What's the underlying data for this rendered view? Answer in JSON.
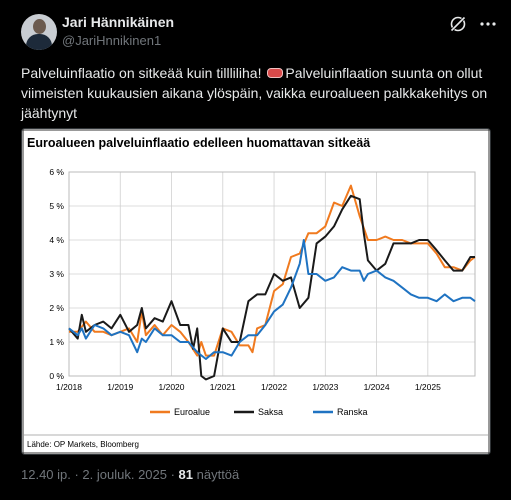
{
  "user": {
    "name": "Jari Hännikäinen",
    "handle": "@JariHnnikinen1"
  },
  "icons": {
    "grok": "grok-icon",
    "more": "more-icon"
  },
  "tweet": {
    "part1": "Palveluinflaatio on sitkeää kuin tillliliha! ",
    "part2": "Palveluinflaation suunta on ollut viimeisten kuukausien aikana ylöspäin, vaikka euroalueen palkkakehitys on jäähtynyt"
  },
  "meta": {
    "time": "12.40 ip. · 2. jouluk. 2025 · ",
    "views": "81",
    "views_label": " näyttöä"
  },
  "chart_data": {
    "type": "line",
    "title": "Euroalueen palveluinflaatio edelleen huomattavan sitkeää",
    "source": "Lähde: OP Markets, Bloomberg",
    "ylim": [
      0,
      6
    ],
    "y_ticks": [
      "0 %",
      "1 %",
      "2 %",
      "3 %",
      "4 %",
      "5 %",
      "6 %"
    ],
    "x_range": [
      2018.0,
      2025.92
    ],
    "x_ticks": [
      "1/2018",
      "1/2019",
      "1/2020",
      "1/2021",
      "1/2022",
      "1/2023",
      "1/2024",
      "1/2025"
    ],
    "grid": true,
    "legend": "bottom",
    "series": [
      {
        "name": "Euroalue",
        "color": "#f07a1f",
        "points": [
          [
            2018.0,
            1.3
          ],
          [
            2018.17,
            1.3
          ],
          [
            2018.33,
            1.6
          ],
          [
            2018.5,
            1.3
          ],
          [
            2018.67,
            1.3
          ],
          [
            2018.83,
            1.2
          ],
          [
            2019.0,
            1.3
          ],
          [
            2019.17,
            1.4
          ],
          [
            2019.33,
            1.0
          ],
          [
            2019.42,
            1.9
          ],
          [
            2019.5,
            1.2
          ],
          [
            2019.67,
            1.5
          ],
          [
            2019.83,
            1.2
          ],
          [
            2020.0,
            1.5
          ],
          [
            2020.17,
            1.3
          ],
          [
            2020.33,
            1.0
          ],
          [
            2020.5,
            0.6
          ],
          [
            2020.58,
            1.0
          ],
          [
            2020.67,
            0.6
          ],
          [
            2020.83,
            0.6
          ],
          [
            2021.0,
            1.4
          ],
          [
            2021.17,
            1.3
          ],
          [
            2021.33,
            0.9
          ],
          [
            2021.5,
            0.9
          ],
          [
            2021.58,
            0.7
          ],
          [
            2021.67,
            1.4
          ],
          [
            2021.83,
            1.5
          ],
          [
            2022.0,
            2.5
          ],
          [
            2022.17,
            2.7
          ],
          [
            2022.33,
            3.5
          ],
          [
            2022.5,
            3.6
          ],
          [
            2022.67,
            4.2
          ],
          [
            2022.83,
            4.2
          ],
          [
            2023.0,
            4.4
          ],
          [
            2023.17,
            5.1
          ],
          [
            2023.33,
            5.0
          ],
          [
            2023.5,
            5.6
          ],
          [
            2023.67,
            4.7
          ],
          [
            2023.83,
            4.0
          ],
          [
            2024.0,
            4.0
          ],
          [
            2024.17,
            4.1
          ],
          [
            2024.33,
            4.0
          ],
          [
            2024.5,
            4.0
          ],
          [
            2024.67,
            3.9
          ],
          [
            2024.83,
            3.9
          ],
          [
            2025.0,
            3.9
          ],
          [
            2025.17,
            3.6
          ],
          [
            2025.33,
            3.2
          ],
          [
            2025.5,
            3.2
          ],
          [
            2025.67,
            3.1
          ],
          [
            2025.83,
            3.4
          ],
          [
            2025.92,
            3.5
          ]
        ]
      },
      {
        "name": "Saksa",
        "color": "#1a1a1a",
        "points": [
          [
            2018.0,
            1.4
          ],
          [
            2018.17,
            1.1
          ],
          [
            2018.25,
            1.8
          ],
          [
            2018.33,
            1.3
          ],
          [
            2018.5,
            1.5
          ],
          [
            2018.67,
            1.6
          ],
          [
            2018.83,
            1.4
          ],
          [
            2019.0,
            1.8
          ],
          [
            2019.17,
            1.3
          ],
          [
            2019.33,
            1.5
          ],
          [
            2019.42,
            2.0
          ],
          [
            2019.5,
            1.4
          ],
          [
            2019.67,
            1.7
          ],
          [
            2019.83,
            1.6
          ],
          [
            2020.0,
            2.2
          ],
          [
            2020.17,
            1.5
          ],
          [
            2020.33,
            1.5
          ],
          [
            2020.42,
            0.8
          ],
          [
            2020.5,
            1.4
          ],
          [
            2020.58,
            0.0
          ],
          [
            2020.67,
            -0.1
          ],
          [
            2020.83,
            0.0
          ],
          [
            2021.0,
            1.4
          ],
          [
            2021.17,
            1.0
          ],
          [
            2021.33,
            1.0
          ],
          [
            2021.5,
            2.2
          ],
          [
            2021.67,
            2.4
          ],
          [
            2021.83,
            2.4
          ],
          [
            2022.0,
            3.0
          ],
          [
            2022.17,
            2.8
          ],
          [
            2022.33,
            2.9
          ],
          [
            2022.5,
            2.0
          ],
          [
            2022.67,
            2.3
          ],
          [
            2022.83,
            3.9
          ],
          [
            2023.0,
            4.1
          ],
          [
            2023.17,
            4.4
          ],
          [
            2023.33,
            4.9
          ],
          [
            2023.5,
            5.3
          ],
          [
            2023.67,
            5.2
          ],
          [
            2023.75,
            4.2
          ],
          [
            2023.83,
            3.4
          ],
          [
            2024.0,
            3.1
          ],
          [
            2024.17,
            3.3
          ],
          [
            2024.33,
            3.9
          ],
          [
            2024.5,
            3.9
          ],
          [
            2024.67,
            3.9
          ],
          [
            2024.83,
            4.0
          ],
          [
            2025.0,
            4.0
          ],
          [
            2025.17,
            3.7
          ],
          [
            2025.33,
            3.4
          ],
          [
            2025.5,
            3.1
          ],
          [
            2025.67,
            3.1
          ],
          [
            2025.83,
            3.5
          ],
          [
            2025.92,
            3.5
          ]
        ]
      },
      {
        "name": "Ranska",
        "color": "#1f73c2",
        "points": [
          [
            2018.0,
            1.4
          ],
          [
            2018.17,
            1.2
          ],
          [
            2018.25,
            1.4
          ],
          [
            2018.33,
            1.1
          ],
          [
            2018.5,
            1.5
          ],
          [
            2018.67,
            1.4
          ],
          [
            2018.83,
            1.2
          ],
          [
            2019.0,
            1.3
          ],
          [
            2019.17,
            1.2
          ],
          [
            2019.33,
            0.7
          ],
          [
            2019.42,
            1.1
          ],
          [
            2019.5,
            1.0
          ],
          [
            2019.67,
            1.4
          ],
          [
            2019.83,
            1.2
          ],
          [
            2020.0,
            1.2
          ],
          [
            2020.17,
            1.0
          ],
          [
            2020.33,
            1.0
          ],
          [
            2020.5,
            0.7
          ],
          [
            2020.67,
            0.5
          ],
          [
            2020.83,
            0.7
          ],
          [
            2021.0,
            0.7
          ],
          [
            2021.17,
            0.6
          ],
          [
            2021.33,
            1.0
          ],
          [
            2021.5,
            1.2
          ],
          [
            2021.67,
            1.2
          ],
          [
            2021.83,
            1.5
          ],
          [
            2022.0,
            1.9
          ],
          [
            2022.17,
            2.1
          ],
          [
            2022.33,
            2.6
          ],
          [
            2022.5,
            3.3
          ],
          [
            2022.58,
            4.0
          ],
          [
            2022.67,
            3.0
          ],
          [
            2022.83,
            3.0
          ],
          [
            2023.0,
            2.8
          ],
          [
            2023.17,
            2.9
          ],
          [
            2023.33,
            3.2
          ],
          [
            2023.5,
            3.1
          ],
          [
            2023.67,
            3.1
          ],
          [
            2023.75,
            2.8
          ],
          [
            2023.83,
            3.0
          ],
          [
            2024.0,
            3.1
          ],
          [
            2024.17,
            2.9
          ],
          [
            2024.33,
            2.8
          ],
          [
            2024.5,
            2.6
          ],
          [
            2024.67,
            2.4
          ],
          [
            2024.83,
            2.3
          ],
          [
            2025.0,
            2.3
          ],
          [
            2025.17,
            2.2
          ],
          [
            2025.33,
            2.4
          ],
          [
            2025.5,
            2.2
          ],
          [
            2025.67,
            2.3
          ],
          [
            2025.83,
            2.3
          ],
          [
            2025.92,
            2.2
          ]
        ]
      }
    ]
  }
}
